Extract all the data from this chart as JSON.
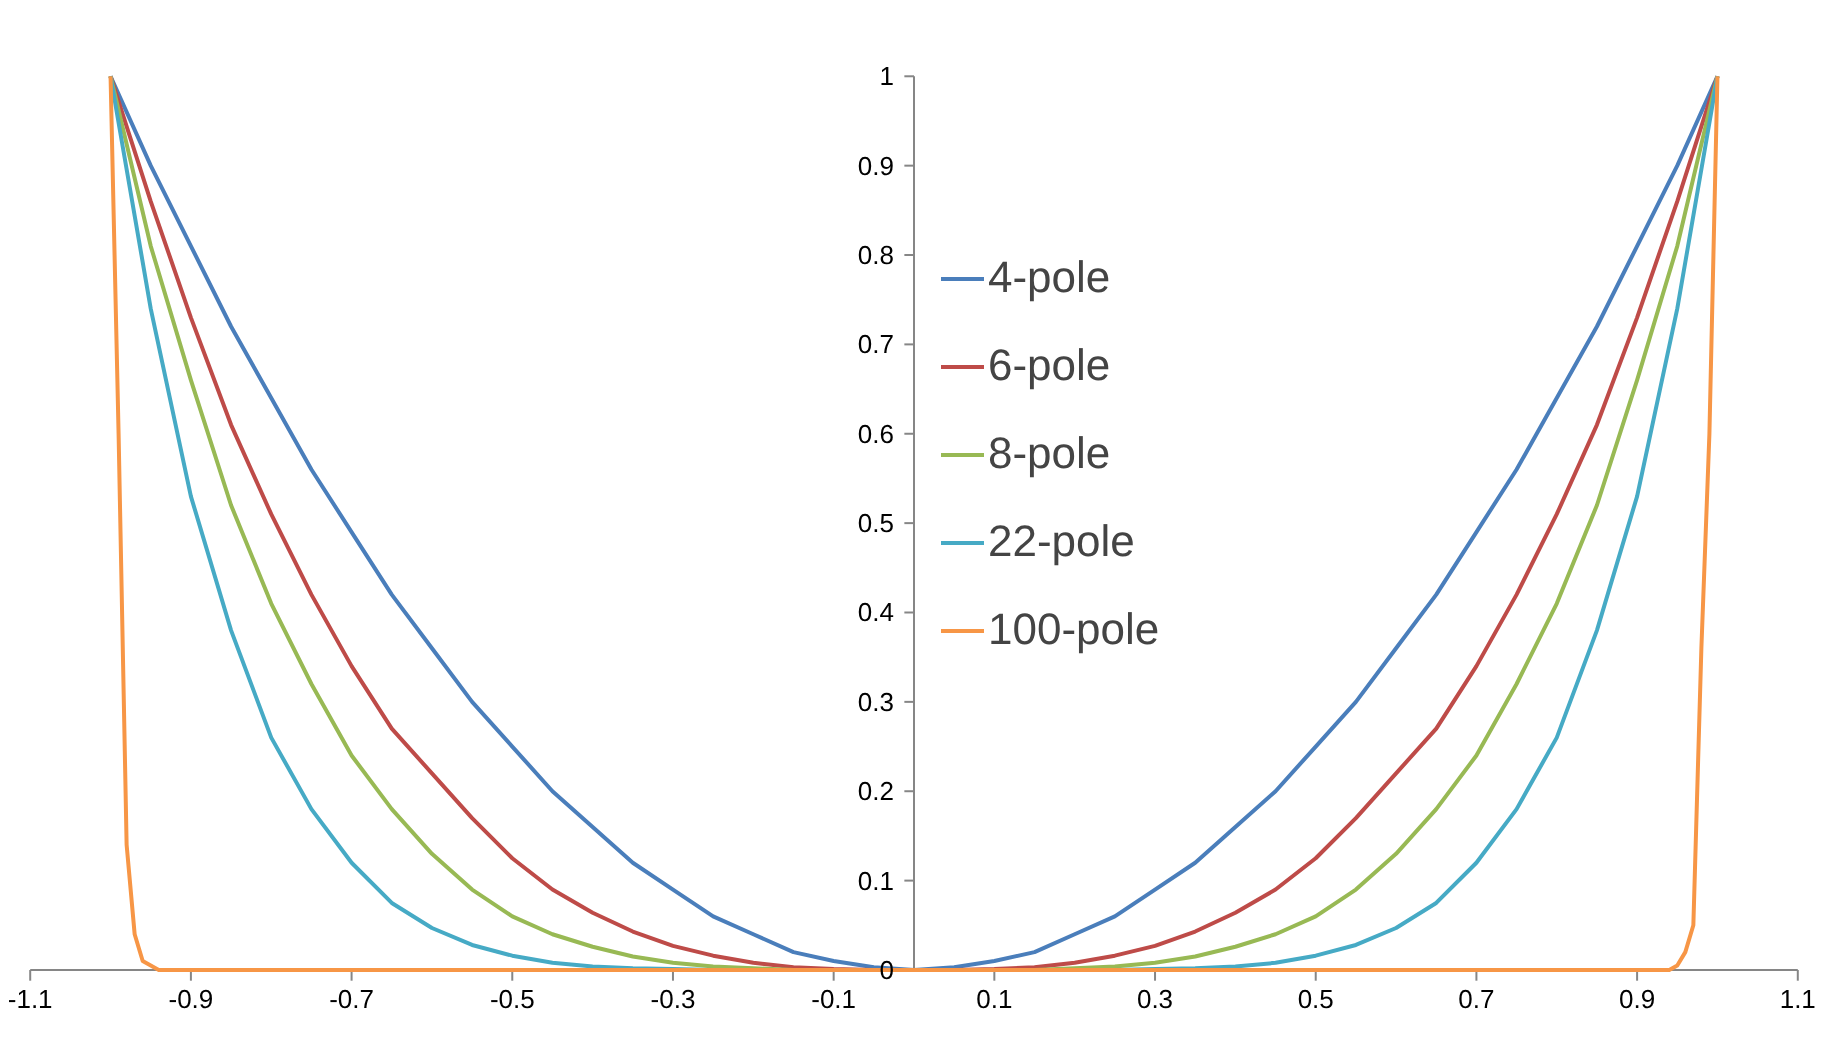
{
  "chart_data": {
    "type": "line",
    "x": [
      -1,
      -0.95,
      -0.9,
      -0.85,
      -0.8,
      -0.75,
      -0.7,
      -0.65,
      -0.6,
      -0.55,
      -0.5,
      -0.45,
      -0.4,
      -0.35,
      -0.3,
      -0.25,
      -0.2,
      -0.15,
      -0.1,
      -0.05,
      0,
      0.05,
      0.1,
      0.15,
      0.2,
      0.25,
      0.3,
      0.35,
      0.4,
      0.45,
      0.5,
      0.55,
      0.6,
      0.65,
      0.7,
      0.75,
      0.8,
      0.85,
      0.9,
      0.95,
      1
    ],
    "series": [
      {
        "name": "4-pole",
        "color": "#4a7ebb",
        "values": [
          1,
          0.9,
          0.81,
          0.72,
          0.64,
          0.56,
          0.49,
          0.42,
          0.36,
          0.3,
          0.25,
          0.2,
          0.16,
          0.12,
          0.09,
          0.06,
          0.04,
          0.02,
          0.01,
          0.003,
          0,
          0.003,
          0.01,
          0.02,
          0.04,
          0.06,
          0.09,
          0.12,
          0.16,
          0.2,
          0.25,
          0.3,
          0.36,
          0.42,
          0.49,
          0.56,
          0.64,
          0.72,
          0.81,
          0.9,
          1
        ]
      },
      {
        "name": "6-pole",
        "color": "#be4b48",
        "values": [
          1,
          0.86,
          0.73,
          0.61,
          0.51,
          0.42,
          0.34,
          0.27,
          0.22,
          0.17,
          0.125,
          0.09,
          0.064,
          0.043,
          0.027,
          0.016,
          0.008,
          0.003,
          0.001,
          0,
          0,
          0,
          0.001,
          0.003,
          0.008,
          0.016,
          0.027,
          0.043,
          0.064,
          0.09,
          0.125,
          0.17,
          0.22,
          0.27,
          0.34,
          0.42,
          0.51,
          0.61,
          0.73,
          0.86,
          1
        ]
      },
      {
        "name": "8-pole",
        "color": "#98b954",
        "values": [
          1,
          0.81,
          0.66,
          0.52,
          0.41,
          0.32,
          0.24,
          0.18,
          0.13,
          0.09,
          0.06,
          0.04,
          0.026,
          0.015,
          0.008,
          0.004,
          0.002,
          0,
          0,
          0,
          0,
          0,
          0,
          0,
          0.002,
          0.004,
          0.008,
          0.015,
          0.026,
          0.04,
          0.06,
          0.09,
          0.13,
          0.18,
          0.24,
          0.32,
          0.41,
          0.52,
          0.66,
          0.81,
          1
        ]
      },
      {
        "name": "22-pole",
        "color": "#46aac5",
        "values": [
          1,
          0.74,
          0.53,
          0.38,
          0.26,
          0.18,
          0.12,
          0.075,
          0.047,
          0.028,
          0.016,
          0.008,
          0.004,
          0.002,
          0.001,
          0,
          0,
          0,
          0,
          0,
          0,
          0,
          0,
          0,
          0,
          0,
          0.001,
          0.002,
          0.004,
          0.008,
          0.016,
          0.028,
          0.047,
          0.075,
          0.12,
          0.18,
          0.26,
          0.38,
          0.53,
          0.74,
          1
        ]
      },
      {
        "name": "100-pole",
        "color": "#f79646",
        "x": [
          -1,
          -0.99,
          -0.98,
          -0.97,
          -0.96,
          -0.95,
          -0.94,
          -0.92,
          0,
          0.92,
          0.94,
          0.95,
          0.96,
          0.97,
          0.98,
          0.99,
          1
        ],
        "values": [
          1,
          0.6,
          0.14,
          0.04,
          0.01,
          0.005,
          0,
          0,
          0,
          0,
          0,
          0.005,
          0.02,
          0.05,
          0.36,
          0.6,
          1
        ]
      }
    ],
    "xlim": [
      -1.1,
      1.1
    ],
    "ylim": [
      0,
      1
    ],
    "xticks": [
      -1.1,
      -0.9,
      -0.7,
      -0.5,
      -0.3,
      -0.1,
      0.1,
      0.3,
      0.5,
      0.7,
      0.9,
      1.1
    ],
    "yticks": [
      0,
      0.1,
      0.2,
      0.3,
      0.4,
      0.5,
      0.6,
      0.7,
      0.8,
      0.9,
      1
    ],
    "legend": "top",
    "line_style": "solid",
    "marker": "none"
  }
}
